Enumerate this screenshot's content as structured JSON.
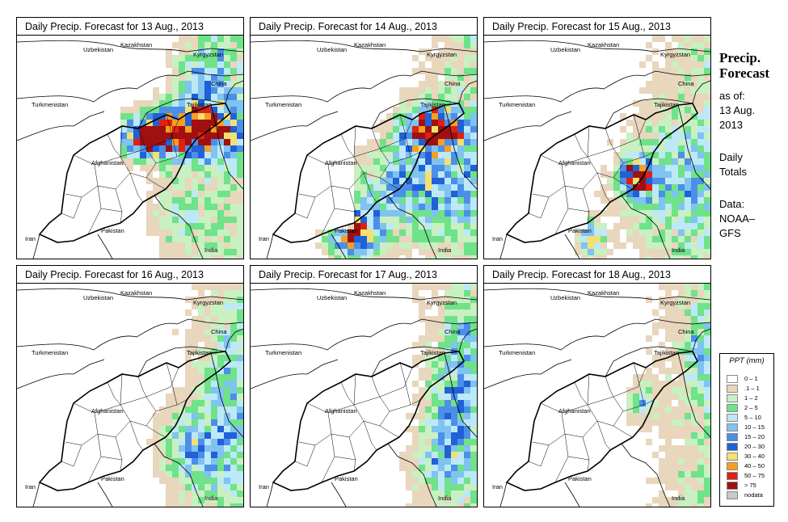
{
  "panels": [
    {
      "title": "Daily Precip. Forecast for  13 Aug., 2013",
      "seed": 13,
      "blobs": [
        [
          0.72,
          0.42,
          0.26,
          0.12,
          1.0
        ],
        [
          0.55,
          0.46,
          0.1,
          0.08,
          0.6
        ],
        [
          0.82,
          0.18,
          0.12,
          0.2,
          0.4
        ],
        [
          0.7,
          0.8,
          0.15,
          0.18,
          0.3
        ]
      ]
    },
    {
      "title": "Daily Precip. Forecast for  14 Aug., 2013",
      "seed": 14,
      "blobs": [
        [
          0.8,
          0.4,
          0.14,
          0.1,
          0.95
        ],
        [
          0.45,
          0.88,
          0.12,
          0.12,
          0.95
        ],
        [
          0.7,
          0.65,
          0.28,
          0.22,
          0.55
        ]
      ]
    },
    {
      "title": "Daily Precip. Forecast for  15 Aug., 2013",
      "seed": 15,
      "blobs": [
        [
          0.66,
          0.62,
          0.07,
          0.07,
          1.0
        ],
        [
          0.46,
          0.9,
          0.06,
          0.08,
          0.8
        ],
        [
          0.78,
          0.65,
          0.28,
          0.28,
          0.35
        ]
      ]
    },
    {
      "title": "Daily Precip. Forecast for  16 Aug., 2013",
      "seed": 16,
      "blobs": [
        [
          0.78,
          0.72,
          0.18,
          0.2,
          0.45
        ],
        [
          0.92,
          0.4,
          0.08,
          0.25,
          0.3
        ]
      ]
    },
    {
      "title": "Daily Precip. Forecast for  17 Aug., 2013",
      "seed": 17,
      "blobs": [
        [
          0.88,
          0.55,
          0.1,
          0.2,
          0.45
        ],
        [
          0.82,
          0.8,
          0.14,
          0.14,
          0.3
        ],
        [
          0.92,
          0.2,
          0.08,
          0.15,
          0.25
        ]
      ]
    },
    {
      "title": "Daily Precip. Forecast for  18 Aug., 2013",
      "seed": 18,
      "blobs": [
        [
          0.68,
          0.52,
          0.06,
          0.08,
          0.45
        ],
        [
          0.94,
          0.3,
          0.06,
          0.2,
          0.25
        ]
      ]
    }
  ],
  "map_labels": [
    {
      "name": "Uzbekistan"
    },
    {
      "name": "Kazakhstan"
    },
    {
      "name": "Kyrgyzstan"
    },
    {
      "name": "China"
    },
    {
      "name": "Turkmenistan"
    },
    {
      "name": "Tajikistan"
    },
    {
      "name": "Afghanistan"
    },
    {
      "name": "Iran"
    },
    {
      "name": "Pakistan"
    },
    {
      "name": "India"
    }
  ],
  "side": {
    "title_line1": "Precip.",
    "title_line2": "Forecast",
    "asof_line1": "as of:",
    "asof_line2": "13 Aug.",
    "asof_line3": "2013",
    "totals_line1": "Daily",
    "totals_line2": "Totals",
    "data_line1": "Data:",
    "data_line2": "NOAA–",
    "data_line3": "GFS"
  },
  "legend": {
    "title": "PPT (mm)",
    "classes": [
      {
        "label": "0 – 1",
        "color": "#ffffff"
      },
      {
        "label": ".1 – 1",
        "color": "#e8d6bd"
      },
      {
        "label": "1 – 2",
        "color": "#c9f0c0"
      },
      {
        "label": "2 – 5",
        "color": "#6fe28a"
      },
      {
        "label": "5 – 10",
        "color": "#bde8f8"
      },
      {
        "label": "10 – 15",
        "color": "#7fc3f0"
      },
      {
        "label": "15 – 20",
        "color": "#4b8fe8"
      },
      {
        "label": "20 – 30",
        "color": "#2060d8"
      },
      {
        "label": "30 – 40",
        "color": "#f2e070"
      },
      {
        "label": "40 – 50",
        "color": "#f5a020"
      },
      {
        "label": "50 – 75",
        "color": "#e02010"
      },
      {
        "label": "> 75",
        "color": "#a01010"
      },
      {
        "label": "nodata",
        "color": "#c8c8c8"
      }
    ]
  }
}
